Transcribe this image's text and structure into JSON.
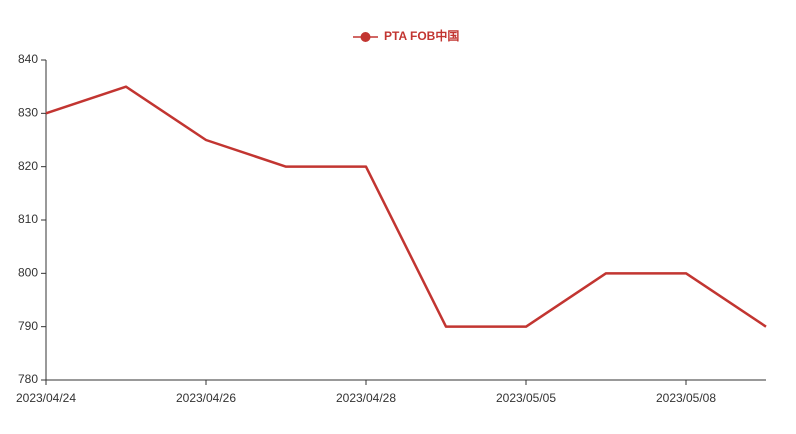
{
  "chart_data": {
    "type": "line",
    "categories": [
      "2023/04/24",
      null,
      "2023/04/26",
      null,
      "2023/04/28",
      null,
      "2023/05/05",
      null,
      "2023/05/08",
      null
    ],
    "series": [
      {
        "name": "PTA FOB中国",
        "color": "#c23531",
        "values": [
          830,
          835,
          825,
          820,
          820,
          790,
          790,
          800,
          800,
          790
        ]
      }
    ],
    "ylim": [
      780,
      840
    ],
    "yticks": [
      780,
      790,
      800,
      810,
      820,
      830,
      840
    ],
    "legend": "top"
  }
}
